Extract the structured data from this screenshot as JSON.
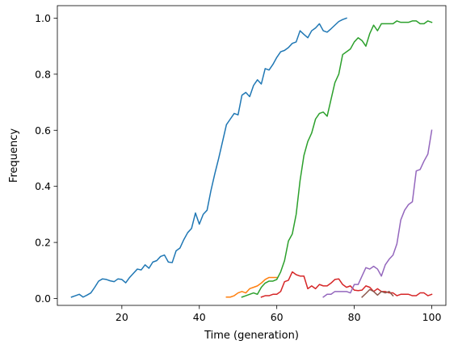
{
  "chart_data": {
    "type": "line",
    "title": "",
    "xlabel": "Time (generation)",
    "ylabel": "Frequency",
    "xlim": [
      3.35,
      103.65
    ],
    "ylim": [
      -0.0245,
      1.0445
    ],
    "xticks": [
      20,
      40,
      60,
      80,
      100
    ],
    "xtick_labels": [
      "20",
      "40",
      "60",
      "80",
      "100"
    ],
    "yticks": [
      0.0,
      0.2,
      0.4,
      0.6,
      0.8,
      1.0
    ],
    "ytick_labels": [
      "0.0",
      "0.2",
      "0.4",
      "0.6",
      "0.8",
      "1.0"
    ],
    "grid": false,
    "legend": "none",
    "series": [
      {
        "color": "#1f77b4",
        "x": [
          7,
          8,
          9,
          10,
          11,
          12,
          13,
          14,
          15,
          16,
          17,
          18,
          19,
          20,
          21,
          22,
          23,
          24,
          25,
          26,
          27,
          28,
          29,
          30,
          31,
          32,
          33,
          34,
          35,
          36,
          37,
          38,
          39,
          40,
          41,
          42,
          43,
          44,
          45,
          46,
          47,
          48,
          49,
          50,
          51,
          52,
          53,
          54,
          55,
          56,
          57,
          58,
          59,
          60,
          61,
          62,
          63,
          64,
          65,
          66,
          67,
          68,
          69,
          70,
          71,
          72,
          73,
          74,
          75,
          76,
          77,
          78
        ],
        "y": [
          0.005,
          0.01,
          0.015,
          0.005,
          0.012,
          0.02,
          0.04,
          0.062,
          0.07,
          0.068,
          0.063,
          0.06,
          0.07,
          0.068,
          0.056,
          0.075,
          0.09,
          0.105,
          0.102,
          0.12,
          0.108,
          0.13,
          0.135,
          0.15,
          0.155,
          0.13,
          0.128,
          0.17,
          0.18,
          0.21,
          0.235,
          0.25,
          0.305,
          0.265,
          0.3,
          0.315,
          0.385,
          0.445,
          0.5,
          0.56,
          0.62,
          0.64,
          0.66,
          0.655,
          0.725,
          0.735,
          0.72,
          0.76,
          0.78,
          0.765,
          0.82,
          0.815,
          0.835,
          0.86,
          0.88,
          0.885,
          0.895,
          0.91,
          0.915,
          0.955,
          0.942,
          0.93,
          0.955,
          0.965,
          0.98,
          0.955,
          0.95,
          0.962,
          0.975,
          0.988,
          0.995,
          1.0
        ]
      },
      {
        "color": "#ff7f0e",
        "x": [
          47,
          48,
          49,
          50,
          51,
          52,
          53,
          54,
          55,
          56,
          57,
          58,
          59,
          60
        ],
        "y": [
          0.005,
          0.005,
          0.01,
          0.02,
          0.025,
          0.02,
          0.035,
          0.04,
          0.045,
          0.055,
          0.068,
          0.075,
          0.075,
          0.075
        ]
      },
      {
        "color": "#2ca02c",
        "x": [
          51,
          52,
          53,
          54,
          55,
          56,
          57,
          58,
          59,
          60,
          61,
          62,
          63,
          64,
          65,
          66,
          67,
          68,
          69,
          70,
          71,
          72,
          73,
          74,
          75,
          76,
          77,
          78,
          79,
          80,
          81,
          82,
          83,
          84,
          85,
          86,
          87,
          88,
          89,
          90,
          91,
          92,
          93,
          94,
          95,
          96,
          97,
          98,
          99,
          100
        ],
        "y": [
          0.005,
          0.01,
          0.015,
          0.02,
          0.015,
          0.04,
          0.055,
          0.062,
          0.062,
          0.068,
          0.095,
          0.135,
          0.205,
          0.23,
          0.3,
          0.42,
          0.51,
          0.56,
          0.59,
          0.64,
          0.66,
          0.665,
          0.65,
          0.71,
          0.77,
          0.8,
          0.87,
          0.88,
          0.89,
          0.915,
          0.93,
          0.92,
          0.9,
          0.945,
          0.975,
          0.955,
          0.98,
          0.98,
          0.98,
          0.98,
          0.99,
          0.985,
          0.985,
          0.985,
          0.99,
          0.99,
          0.98,
          0.98,
          0.99,
          0.985
        ]
      },
      {
        "color": "#d62728",
        "x": [
          56,
          57,
          58,
          59,
          60,
          61,
          62,
          63,
          64,
          65,
          66,
          67,
          68,
          69,
          70,
          71,
          72,
          73,
          74,
          75,
          76,
          77,
          78,
          79,
          80,
          81,
          82,
          83,
          84,
          85,
          86,
          87,
          88,
          89,
          90,
          91,
          92,
          93,
          94,
          95,
          96,
          97,
          98,
          99,
          100
        ],
        "y": [
          0.005,
          0.01,
          0.01,
          0.015,
          0.015,
          0.025,
          0.06,
          0.065,
          0.095,
          0.085,
          0.08,
          0.08,
          0.035,
          0.045,
          0.035,
          0.05,
          0.045,
          0.045,
          0.055,
          0.068,
          0.07,
          0.05,
          0.04,
          0.045,
          0.03,
          0.028,
          0.03,
          0.045,
          0.04,
          0.025,
          0.035,
          0.025,
          0.025,
          0.02,
          0.02,
          0.01,
          0.015,
          0.015,
          0.015,
          0.01,
          0.01,
          0.02,
          0.02,
          0.01,
          0.015
        ]
      },
      {
        "color": "#9467bd",
        "x": [
          72,
          73,
          74,
          75,
          76,
          77,
          78,
          79,
          80,
          81,
          82,
          83,
          84,
          85,
          86,
          87,
          88,
          89,
          90,
          91,
          92,
          93,
          94,
          95,
          96,
          97,
          98,
          99,
          100
        ],
        "y": [
          0.005,
          0.015,
          0.015,
          0.025,
          0.025,
          0.025,
          0.025,
          0.02,
          0.05,
          0.05,
          0.08,
          0.11,
          0.105,
          0.115,
          0.105,
          0.08,
          0.12,
          0.14,
          0.155,
          0.195,
          0.28,
          0.315,
          0.335,
          0.345,
          0.455,
          0.46,
          0.49,
          0.515,
          0.6
        ]
      },
      {
        "color": "#8c564b",
        "x": [
          82,
          83,
          84,
          85,
          86,
          87,
          88,
          89,
          90
        ],
        "y": [
          0.005,
          0.018,
          0.032,
          0.025,
          0.012,
          0.025,
          0.02,
          0.025,
          0.01
        ]
      }
    ]
  }
}
